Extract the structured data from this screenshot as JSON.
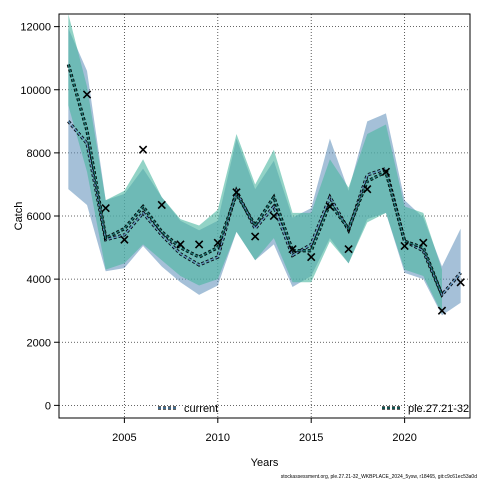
{
  "chart_data": {
    "type": "line",
    "xlabel": "Years",
    "ylabel": "Catch",
    "xlim": [
      2001.5,
      2023.5
    ],
    "ylim": [
      -400,
      12400
    ],
    "xticks": [
      2005,
      2010,
      2015,
      2020
    ],
    "yticks": [
      0,
      2000,
      4000,
      6000,
      8000,
      10000,
      12000
    ],
    "grid": true,
    "legend_position": "bottom",
    "caption": "stockassessment.org, ple.27.21-32_WKBPLACE_2024_5ysw, r18465, git:c9c61ec53a0d",
    "series": [
      {
        "name": "current",
        "color": "#5b8db8",
        "fill": "#5b8db8",
        "x": [
          2002,
          2003,
          2004,
          2005,
          2006,
          2007,
          2008,
          2009,
          2010,
          2011,
          2012,
          2013,
          2014,
          2015,
          2016,
          2017,
          2018,
          2019,
          2020,
          2021,
          2022,
          2023
        ],
        "y": [
          9000,
          8300,
          5250,
          5400,
          6100,
          5400,
          4800,
          4450,
          4700,
          6800,
          5600,
          6300,
          4750,
          5100,
          6600,
          5550,
          7300,
          7500,
          5200,
          4900,
          3500,
          4200
        ],
        "lower": [
          6850,
          6350,
          4250,
          4350,
          5050,
          4400,
          3900,
          3500,
          3800,
          5500,
          4600,
          5100,
          3750,
          4100,
          5300,
          4500,
          5900,
          6100,
          4200,
          4000,
          2850,
          3250
        ],
        "upper": [
          11950,
          10600,
          6500,
          6700,
          7500,
          6600,
          5850,
          5550,
          5850,
          8450,
          6850,
          7750,
          5950,
          6250,
          8450,
          6800,
          9000,
          9250,
          6500,
          5950,
          4400,
          5600
        ]
      },
      {
        "name": "ple.27.21-32",
        "color": "#1a6e6a",
        "fill": "#4ab5a0",
        "x": [
          2002,
          2003,
          2004,
          2005,
          2006,
          2007,
          2008,
          2009,
          2010,
          2011,
          2012,
          2013,
          2014,
          2015,
          2016,
          2017,
          2018,
          2019,
          2020,
          2021,
          2022
        ],
        "y": [
          10800,
          8700,
          5300,
          5600,
          6300,
          5500,
          5000,
          4700,
          5000,
          6700,
          5700,
          6600,
          4900,
          4900,
          6400,
          5600,
          7100,
          7400,
          5200,
          5000,
          3500
        ],
        "lower": [
          9500,
          7400,
          4300,
          4500,
          5100,
          4600,
          4100,
          3800,
          4000,
          5500,
          4600,
          5300,
          3900,
          3900,
          5200,
          4500,
          5800,
          6100,
          4300,
          4100,
          2900
        ],
        "upper": [
          12400,
          10100,
          6500,
          6800,
          7800,
          6600,
          5900,
          5700,
          6200,
          8600,
          7000,
          8100,
          6100,
          6100,
          7800,
          6900,
          8600,
          8900,
          6300,
          6100,
          4300
        ]
      }
    ],
    "observations": {
      "marker": "x",
      "x": [
        2003,
        2004,
        2005,
        2006,
        2007,
        2008,
        2009,
        2010,
        2011,
        2012,
        2013,
        2014,
        2015,
        2016,
        2017,
        2018,
        2019,
        2020,
        2021,
        2022,
        2023
      ],
      "y": [
        9850,
        6250,
        5250,
        8100,
        6350,
        5100,
        5100,
        5150,
        6750,
        5350,
        6000,
        4950,
        4700,
        6300,
        4950,
        6850,
        7400,
        5050,
        5150,
        3000,
        3900
      ]
    }
  }
}
